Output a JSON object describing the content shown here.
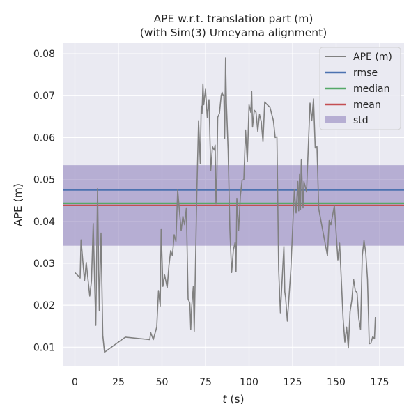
{
  "chart_data": {
    "type": "line",
    "title_lines": [
      "APE w.r.t. translation part (m)",
      "(with Sim(3) Umeyama alignment)"
    ],
    "xlabel_var": "t",
    "xlabel_unit": " (s)",
    "ylabel": "APE (m)",
    "xlim": [
      -7,
      189
    ],
    "ylim": [
      0.0054,
      0.0825
    ],
    "xticks": [
      0,
      25,
      50,
      75,
      100,
      125,
      150,
      175
    ],
    "yticks": [
      0.01,
      0.02,
      0.03,
      0.04,
      0.05,
      0.06,
      0.07,
      0.08
    ],
    "ytick_labels": [
      "0.01",
      "0.02",
      "0.03",
      "0.04",
      "0.05",
      "0.06",
      "0.07",
      "0.08"
    ],
    "series": [
      {
        "name": "APE (m)",
        "color": "#808080",
        "points": [
          [
            0,
            0.0278
          ],
          [
            3,
            0.0265
          ],
          [
            3.5,
            0.0356
          ],
          [
            5.5,
            0.0258
          ],
          [
            6.5,
            0.0302
          ],
          [
            8.5,
            0.0222
          ],
          [
            9.5,
            0.0258
          ],
          [
            10.5,
            0.0395
          ],
          [
            11.5,
            0.0225
          ],
          [
            12,
            0.0152
          ],
          [
            13,
            0.0478
          ],
          [
            14,
            0.0188
          ],
          [
            15,
            0.0372
          ],
          [
            16,
            0.0128
          ],
          [
            17,
            0.0088
          ],
          [
            29,
            0.0124
          ],
          [
            43,
            0.0118
          ],
          [
            43.5,
            0.0135
          ],
          [
            45,
            0.0118
          ],
          [
            47,
            0.0148
          ],
          [
            48,
            0.0235
          ],
          [
            49,
            0.0198
          ],
          [
            49.5,
            0.0382
          ],
          [
            50.5,
            0.0245
          ],
          [
            51.5,
            0.0272
          ],
          [
            53,
            0.0242
          ],
          [
            54,
            0.0295
          ],
          [
            55,
            0.033
          ],
          [
            56,
            0.0318
          ],
          [
            57,
            0.0368
          ],
          [
            58,
            0.0352
          ],
          [
            59,
            0.0475
          ],
          [
            61,
            0.0378
          ],
          [
            62,
            0.0412
          ],
          [
            63,
            0.0392
          ],
          [
            64,
            0.0432
          ],
          [
            65,
            0.0215
          ],
          [
            66,
            0.0205
          ],
          [
            66.5,
            0.0142
          ],
          [
            67,
            0.0192
          ],
          [
            68,
            0.0245
          ],
          [
            68.5,
            0.0138
          ],
          [
            70,
            0.0468
          ],
          [
            71,
            0.064
          ],
          [
            72,
            0.0538
          ],
          [
            72.5,
            0.0675
          ],
          [
            73,
            0.0658
          ],
          [
            73.5,
            0.0728
          ],
          [
            74,
            0.0678
          ],
          [
            75,
            0.0715
          ],
          [
            76,
            0.0648
          ],
          [
            77,
            0.069
          ],
          [
            78,
            0.0522
          ],
          [
            79,
            0.0578
          ],
          [
            80,
            0.057
          ],
          [
            80.5,
            0.0582
          ],
          [
            81,
            0.0442
          ],
          [
            81.5,
            0.0505
          ],
          [
            82,
            0.0648
          ],
          [
            83,
            0.0658
          ],
          [
            84,
            0.07
          ],
          [
            84.5,
            0.0708
          ],
          [
            85,
            0.07
          ],
          [
            85.5,
            0.0702
          ],
          [
            86,
            0.0598
          ],
          [
            86.5,
            0.079
          ],
          [
            87,
            0.0682
          ],
          [
            88,
            0.0568
          ],
          [
            89,
            0.0378
          ],
          [
            90,
            0.0278
          ],
          [
            91,
            0.0332
          ],
          [
            92,
            0.035
          ],
          [
            92.5,
            0.028
          ],
          [
            93,
            0.0455
          ],
          [
            94,
            0.0378
          ],
          [
            95,
            0.046
          ],
          [
            96,
            0.0498
          ],
          [
            97,
            0.05
          ],
          [
            98,
            0.0618
          ],
          [
            99,
            0.0542
          ],
          [
            100,
            0.0678
          ],
          [
            101,
            0.066
          ],
          [
            101.5,
            0.071
          ],
          [
            102,
            0.0625
          ],
          [
            103,
            0.0665
          ],
          [
            104,
            0.066
          ],
          [
            105,
            0.0615
          ],
          [
            106,
            0.0655
          ],
          [
            107,
            0.0638
          ],
          [
            108,
            0.059
          ],
          [
            109,
            0.0685
          ],
          [
            110,
            0.068
          ],
          [
            112,
            0.0672
          ],
          [
            114,
            0.064
          ],
          [
            115,
            0.06
          ],
          [
            116,
            0.0602
          ],
          [
            117,
            0.0285
          ],
          [
            118,
            0.0182
          ],
          [
            120,
            0.034
          ],
          [
            120.5,
            0.0232
          ],
          [
            121,
            0.0218
          ],
          [
            122,
            0.0162
          ],
          [
            124,
            0.0285
          ],
          [
            126,
            0.0475
          ],
          [
            127,
            0.042
          ],
          [
            128,
            0.0495
          ],
          [
            128.5,
            0.0425
          ],
          [
            129,
            0.0512
          ],
          [
            129.5,
            0.0428
          ],
          [
            130,
            0.0548
          ],
          [
            131,
            0.0432
          ],
          [
            131.5,
            0.0495
          ],
          [
            133,
            0.047
          ],
          [
            135,
            0.0682
          ],
          [
            136,
            0.064
          ],
          [
            137,
            0.0692
          ],
          [
            138,
            0.0575
          ],
          [
            139,
            0.0578
          ],
          [
            140,
            0.043
          ],
          [
            145,
            0.0318
          ],
          [
            146,
            0.0402
          ],
          [
            147,
            0.0392
          ],
          [
            149,
            0.0438
          ],
          [
            151,
            0.0308
          ],
          [
            152,
            0.0348
          ],
          [
            154,
            0.0168
          ],
          [
            155,
            0.0112
          ],
          [
            156,
            0.0148
          ],
          [
            157,
            0.0098
          ],
          [
            158,
            0.0185
          ],
          [
            159,
            0.0212
          ],
          [
            160,
            0.0262
          ],
          [
            161,
            0.0235
          ],
          [
            162,
            0.023
          ],
          [
            163,
            0.0168
          ],
          [
            164,
            0.0142
          ],
          [
            165,
            0.0318
          ],
          [
            166,
            0.0355
          ],
          [
            167,
            0.0325
          ],
          [
            168,
            0.0262
          ],
          [
            169,
            0.0108
          ],
          [
            170,
            0.011
          ],
          [
            171,
            0.0125
          ],
          [
            172,
            0.012
          ],
          [
            172.5,
            0.0172
          ]
        ]
      }
    ],
    "stats": {
      "rmse": 0.0475,
      "median": 0.0443,
      "mean": 0.0438,
      "std_band": [
        0.0342,
        0.0534
      ]
    },
    "colors": {
      "background": "#eaeaf2",
      "grid": "#ffffff",
      "ape": "#808080",
      "rmse": "#4c72b0",
      "median": "#55a868",
      "mean": "#c44e52",
      "std_fill": "#8172b3"
    },
    "legend": {
      "position": "top-right",
      "entries": [
        "APE (m)",
        "rmse",
        "median",
        "mean",
        "std"
      ]
    }
  }
}
